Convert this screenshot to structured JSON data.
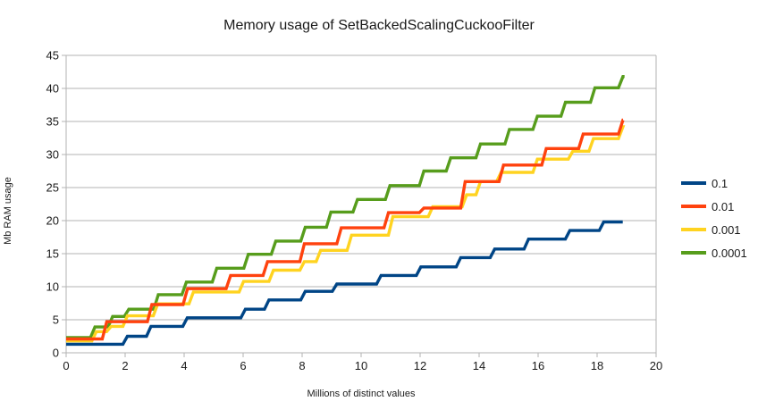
{
  "chart_data": {
    "type": "line",
    "step_style": true,
    "title": "Memory usage of SetBackedScalingCuckooFilter",
    "xlabel": "Millions of distinct values",
    "ylabel": "Mb RAM usage",
    "xlim": [
      0,
      20
    ],
    "ylim": [
      0,
      45
    ],
    "xticks": [
      0,
      2,
      4,
      6,
      8,
      10,
      12,
      14,
      16,
      18,
      20
    ],
    "yticks": [
      0,
      5,
      10,
      15,
      20,
      25,
      30,
      35,
      40,
      45
    ],
    "grid": "horizontal-only",
    "gridline_color": "#b3b3b3",
    "axis_color": "#b3b3b3",
    "text_color": "#1a1a1a",
    "legend_position": "right",
    "series": [
      {
        "name": "0.1",
        "color": "#004586",
        "end_x": 18.87,
        "points": [
          [
            0,
            1.3
          ],
          [
            2.0,
            2.5
          ],
          [
            2.8,
            4.0
          ],
          [
            4.03,
            5.3
          ],
          [
            6.0,
            6.6
          ],
          [
            6.8,
            8.0
          ],
          [
            8.03,
            9.3
          ],
          [
            9.1,
            10.4
          ],
          [
            10.6,
            11.7
          ],
          [
            11.95,
            13.0
          ],
          [
            13.3,
            14.4
          ],
          [
            14.45,
            15.7
          ],
          [
            15.6,
            17.2
          ],
          [
            17.0,
            18.5
          ],
          [
            18.15,
            19.8
          ]
        ]
      },
      {
        "name": "0.01",
        "color": "#ff420e",
        "end_x": 18.88,
        "points": [
          [
            0,
            2.1
          ],
          [
            1.3,
            4.7
          ],
          [
            2.83,
            7.3
          ],
          [
            4.04,
            9.7
          ],
          [
            5.5,
            11.7
          ],
          [
            6.75,
            13.8
          ],
          [
            8.0,
            16.5
          ],
          [
            9.25,
            18.9
          ],
          [
            10.85,
            21.2
          ],
          [
            12.05,
            21.9
          ],
          [
            13.45,
            25.9
          ],
          [
            14.75,
            28.4
          ],
          [
            16.2,
            30.9
          ],
          [
            17.45,
            33.1
          ],
          [
            18.8,
            35.2
          ]
        ]
      },
      {
        "name": "0.001",
        "color": "#ffd320",
        "end_x": 18.86,
        "points": [
          [
            0,
            1.8
          ],
          [
            0.95,
            3.2
          ],
          [
            1.45,
            4.0
          ],
          [
            2.0,
            5.6
          ],
          [
            3.03,
            7.4
          ],
          [
            4.24,
            9.2
          ],
          [
            5.94,
            10.8
          ],
          [
            6.95,
            12.5
          ],
          [
            8.0,
            13.8
          ],
          [
            8.55,
            15.5
          ],
          [
            9.6,
            17.8
          ],
          [
            11.0,
            20.6
          ],
          [
            12.35,
            22.1
          ],
          [
            13.5,
            23.9
          ],
          [
            13.97,
            25.9
          ],
          [
            14.67,
            27.3
          ],
          [
            15.9,
            29.3
          ],
          [
            17.1,
            30.5
          ],
          [
            17.8,
            32.4
          ],
          [
            18.8,
            34.2
          ]
        ]
      },
      {
        "name": "0.0001",
        "color": "#579d1c",
        "end_x": 18.93,
        "points": [
          [
            0,
            2.3
          ],
          [
            0.9,
            3.9
          ],
          [
            1.5,
            5.5
          ],
          [
            2.05,
            6.6
          ],
          [
            3.05,
            8.8
          ],
          [
            4.0,
            10.7
          ],
          [
            5.03,
            12.8
          ],
          [
            6.1,
            14.9
          ],
          [
            7.03,
            16.9
          ],
          [
            8.03,
            19.0
          ],
          [
            8.9,
            21.3
          ],
          [
            9.8,
            23.2
          ],
          [
            10.9,
            25.3
          ],
          [
            12.05,
            27.5
          ],
          [
            12.96,
            29.5
          ],
          [
            13.97,
            31.6
          ],
          [
            14.95,
            33.8
          ],
          [
            15.9,
            35.8
          ],
          [
            16.85,
            37.9
          ],
          [
            17.85,
            40.1
          ],
          [
            18.8,
            41.8
          ]
        ]
      }
    ],
    "legend": [
      {
        "label": "0.1",
        "color": "#004586"
      },
      {
        "label": "0.01",
        "color": "#ff420e"
      },
      {
        "label": "0.001",
        "color": "#ffd320"
      },
      {
        "label": "0.0001",
        "color": "#579d1c"
      }
    ]
  }
}
